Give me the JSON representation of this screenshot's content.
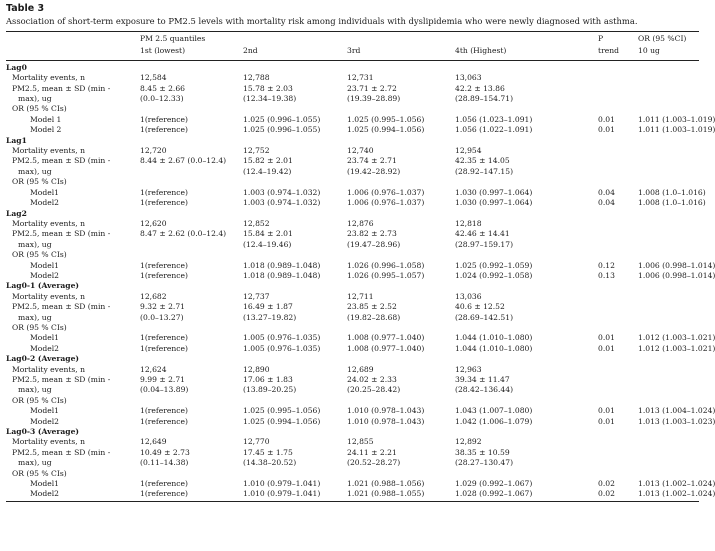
{
  "table_label": "Table 3",
  "caption": "Association of short-term exposure to PM2.5 levels with mortality risk among individuals with dyslipidemia who were newly diagnosed with asthma.",
  "header": {
    "pm_quantiles": "PM 2.5 quantiles",
    "q1": "1st (lowest)",
    "q2": "2nd",
    "q3": "3rd",
    "q4": "4th (Highest)",
    "p_trend_1": "P",
    "p_trend_2": "trend",
    "or_1": "OR (95 %CI)",
    "or_2": "10 ug"
  },
  "groups": [
    {
      "name": "Lag0",
      "mortality_label": "Mortality events, n",
      "mortality": [
        "12,584",
        "12,788",
        "12,731",
        "13,063"
      ],
      "pm_label_1": "PM2.5, mean ± SD (min -",
      "pm_mean": [
        "8.45 ± 2.66",
        "15.78 ± 2.03",
        "23.71 ± 2.72",
        "42.2 ± 13.86"
      ],
      "pm_label_2": "max), ug",
      "pm_range": [
        "(0.0–12.33)",
        "(12.34–19.38)",
        "(19.39–28.89)",
        "(28.89–154.71)"
      ],
      "or_label": "OR (95 % CIs)",
      "models": [
        {
          "name": "Model 1",
          "values": [
            "1(reference)",
            "1.025 (0.996–1.055)",
            "1.025 (0.995–1.056)",
            "1.056 (1.023–1.091)"
          ],
          "p": "0.01",
          "or10": "1.011 (1.003–1.019)"
        },
        {
          "name": "Model 2",
          "values": [
            "1(reference)",
            "1.025 (0.996–1.055)",
            "1.025 (0.994–1.056)",
            "1.056 (1.022–1.091)"
          ],
          "p": "0.01",
          "or10": "1.011 (1.003–1.019)"
        }
      ]
    },
    {
      "name": "Lag1",
      "mortality_label": "Mortality events, n",
      "mortality": [
        "12,720",
        "12,752",
        "12,740",
        "12,954"
      ],
      "pm_label_1": "PM2.5, mean ± SD (min -",
      "pm_mean": [
        "8.44 ± 2.67 (0.0–12.4)",
        "15.82 ± 2.01",
        "23.74 ± 2.71",
        "42.35 ± 14.05"
      ],
      "pm_label_2": "max), ug",
      "pm_range": [
        "",
        "(12.4–19.42)",
        "(19.42–28.92)",
        "(28.92–147.15)"
      ],
      "or_label": "OR (95 % CIs)",
      "models": [
        {
          "name": "Model1",
          "values": [
            "1(reference)",
            "1.003 (0.974–1.032)",
            "1.006 (0.976–1.037)",
            "1.030 (0.997–1.064)"
          ],
          "p": "0.04",
          "or10": "1.008 (1.0–1.016)"
        },
        {
          "name": "Model2",
          "values": [
            "1(reference)",
            "1.003 (0.974–1.032)",
            "1.006 (0.976–1.037)",
            "1.030 (0.997–1.064)"
          ],
          "p": "0.04",
          "or10": "1.008 (1.0–1.016)"
        }
      ]
    },
    {
      "name": "Lag2",
      "mortality_label": "Mortality events, n",
      "mortality": [
        "12,620",
        "12,852",
        "12,876",
        "12,818"
      ],
      "pm_label_1": "PM2.5, mean ± SD (min -",
      "pm_mean": [
        "8.47 ± 2.62 (0.0–12.4)",
        "15.84 ± 2.01",
        "23.82 ± 2.73",
        "42.46 ± 14.41"
      ],
      "pm_label_2": "max), ug",
      "pm_range": [
        "",
        "(12.4–19.46)",
        "(19.47–28.96)",
        "(28.97–159.17)"
      ],
      "or_label": "OR (95 % CIs)",
      "models": [
        {
          "name": "Model1",
          "values": [
            "1(reference)",
            "1.018 (0.989–1.048)",
            "1.026 (0.996–1.058)",
            "1.025 (0.992–1.059)"
          ],
          "p": "0.12",
          "or10": "1.006 (0.998–1.014)"
        },
        {
          "name": "Model2",
          "values": [
            "1(reference)",
            "1.018 (0.989–1.048)",
            "1.026 (0.995–1.057)",
            "1.024 (0.992–1.058)"
          ],
          "p": "0.13",
          "or10": "1.006 (0.998–1.014)"
        }
      ]
    },
    {
      "name": "Lag0-1 (Average)",
      "mortality_label": "Mortality events, n",
      "mortality": [
        "12,682",
        "12,737",
        "12,711",
        "13,036"
      ],
      "pm_label_1": "PM2.5, mean ± SD (min -",
      "pm_mean": [
        "9.32 ± 2.71",
        "16.49 ± 1.87",
        "23.85 ± 2.52",
        "40.6 ± 12.52"
      ],
      "pm_label_2": "max), ug",
      "pm_range": [
        "(0.0–13.27)",
        "(13.27–19.82)",
        "(19.82–28.68)",
        "(28.69–142.51)"
      ],
      "or_label": "OR (95 % CIs)",
      "models": [
        {
          "name": "Model1",
          "values": [
            "1(reference)",
            "1.005 (0.976–1.035)",
            "1.008 (0.977–1.040)",
            "1.044 (1.010–1.080)"
          ],
          "p": "0.01",
          "or10": "1.012 (1.003–1.021)"
        },
        {
          "name": "Model2",
          "values": [
            "1(reference)",
            "1.005 (0.976–1.035)",
            "1.008 (0.977–1.040)",
            "1.044 (1.010–1.080)"
          ],
          "p": "0.01",
          "or10": "1.012 (1.003–1.021)"
        }
      ]
    },
    {
      "name": "Lag0-2 (Average)",
      "mortality_label": "Mortality events, n",
      "mortality": [
        "12,624",
        "12,890",
        "12,689",
        "12,963"
      ],
      "pm_label_1": "PM2.5, mean ± SD (min -",
      "pm_mean": [
        "9.99 ± 2.71",
        "17.06 ± 1.83",
        "24.02 ± 2.33",
        "39.34 ± 11.47"
      ],
      "pm_label_2": "max), ug",
      "pm_range": [
        "(0.04–13.89)",
        "(13.89–20.25)",
        "(20.25–28.42)",
        "(28.42–136.44)"
      ],
      "or_label": "OR (95 % CIs)",
      "models": [
        {
          "name": "Model1",
          "values": [
            "1(reference)",
            "1.025 (0.995–1.056)",
            "1.010 (0.978–1.043)",
            "1.043 (1.007–1.080)"
          ],
          "p": "0.01",
          "or10": "1.013 (1.004–1.024)"
        },
        {
          "name": "Model2",
          "values": [
            "1(reference)",
            "1.025 (0.994–1.056)",
            "1.010 (0.978–1.043)",
            "1.042 (1.006–1.079)"
          ],
          "p": "0.01",
          "or10": "1.013 (1.003–1.023)"
        }
      ]
    },
    {
      "name": "Lag0-3 (Average)",
      "mortality_label": "Mortality events, n",
      "mortality": [
        "12,649",
        "12,770",
        "12,855",
        "12,892"
      ],
      "pm_label_1": "PM2.5, mean ± SD (min -",
      "pm_mean": [
        "10.49 ± 2.73",
        "17.45 ± 1.75",
        "24.11 ± 2.21",
        "38.35 ± 10.59"
      ],
      "pm_label_2": "max), ug",
      "pm_range": [
        "(0.11–14.38)",
        "(14.38–20.52)",
        "(20.52–28.27)",
        "(28.27–130.47)"
      ],
      "or_label": "OR (95 % CIs)",
      "models": [
        {
          "name": "Model1",
          "values": [
            "1(reference)",
            "1.010 (0.979–1.041)",
            "1.021 (0.988–1.056)",
            "1.029 (0.992–1.067)"
          ],
          "p": "0.02",
          "or10": "1.013 (1.002–1.024)"
        },
        {
          "name": "Model2",
          "values": [
            "1(reference)",
            "1.010 (0.979–1.041)",
            "1.021 (0.988–1.055)",
            "1.028 (0.992–1.067)"
          ],
          "p": "0.02",
          "or10": "1.013 (1.002–1.024)"
        }
      ]
    }
  ]
}
